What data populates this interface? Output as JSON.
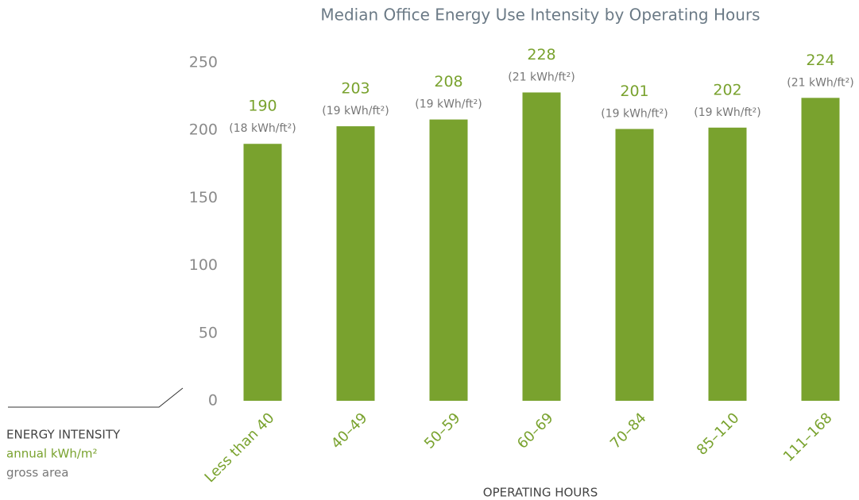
{
  "chart_data": {
    "type": "bar",
    "title": "Median Office Energy Use Intensity by Operating Hours",
    "categories": [
      "Less than 40",
      "40–49",
      "50–59",
      "60–69",
      "70–84",
      "85–110",
      "111–168"
    ],
    "values": [
      190,
      203,
      208,
      228,
      201,
      202,
      224
    ],
    "secondary_labels": [
      "(18 kWh/ft²)",
      "(19 kWh/ft²)",
      "(19 kWh/ft²)",
      "(21 kWh/ft²)",
      "(19 kWh/ft²)",
      "(19 kWh/ft²)",
      "(21 kWh/ft²)"
    ],
    "color": "#79a22e",
    "ylim": [
      0,
      250
    ],
    "yticks": [
      0,
      50,
      100,
      150,
      200,
      250
    ],
    "x_label": "OPERATING HOURS",
    "y_label": [
      "ENERGY INTENSITY",
      "annual kWh/m²",
      "gross area"
    ],
    "grid": false
  }
}
